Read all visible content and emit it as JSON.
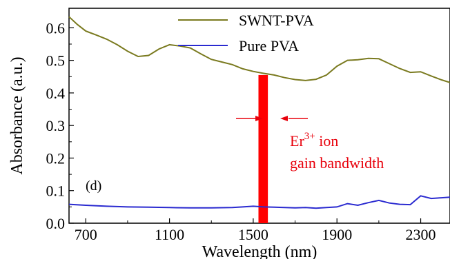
{
  "chart_data": {
    "type": "line",
    "xlabel": "Wavelength (nm)",
    "ylabel": "Absorbance (a.u.)",
    "xlim": [
      620,
      2440
    ],
    "ylim": [
      0.0,
      0.66
    ],
    "x_ticks": [
      700,
      1100,
      1500,
      1900,
      2300
    ],
    "y_ticks": [
      0.0,
      0.1,
      0.2,
      0.3,
      0.4,
      0.5,
      0.6
    ],
    "x_tick_labels": [
      "700",
      "1100",
      "1500",
      "1900",
      "2300"
    ],
    "y_tick_labels": [
      "0.0",
      "0.1",
      "0.2",
      "0.3",
      "0.4",
      "0.5",
      "0.6"
    ],
    "grid": false,
    "legend_position": "top-center",
    "series": [
      {
        "name": "SWNT-PVA",
        "color": "#7a7a1f",
        "x": [
          620,
          660,
          700,
          750,
          800,
          850,
          900,
          950,
          1000,
          1050,
          1100,
          1150,
          1200,
          1250,
          1300,
          1350,
          1400,
          1450,
          1500,
          1550,
          1600,
          1650,
          1700,
          1750,
          1800,
          1850,
          1900,
          1950,
          2000,
          2050,
          2100,
          2150,
          2200,
          2250,
          2300,
          2350,
          2400,
          2440
        ],
        "y": [
          0.634,
          0.61,
          0.59,
          0.578,
          0.565,
          0.548,
          0.528,
          0.512,
          0.515,
          0.535,
          0.548,
          0.544,
          0.538,
          0.52,
          0.503,
          0.495,
          0.487,
          0.474,
          0.466,
          0.46,
          0.455,
          0.447,
          0.441,
          0.438,
          0.442,
          0.455,
          0.482,
          0.5,
          0.502,
          0.506,
          0.505,
          0.49,
          0.475,
          0.463,
          0.465,
          0.452,
          0.44,
          0.432
        ]
      },
      {
        "name": "Pure PVA",
        "color": "#2a2ad0",
        "x": [
          620,
          700,
          800,
          900,
          1000,
          1100,
          1200,
          1300,
          1400,
          1450,
          1500,
          1550,
          1600,
          1650,
          1700,
          1750,
          1800,
          1850,
          1900,
          1950,
          2000,
          2050,
          2100,
          2150,
          2200,
          2250,
          2300,
          2350,
          2400,
          2440
        ],
        "y": [
          0.058,
          0.055,
          0.052,
          0.05,
          0.049,
          0.048,
          0.047,
          0.047,
          0.048,
          0.05,
          0.052,
          0.05,
          0.049,
          0.048,
          0.047,
          0.048,
          0.046,
          0.048,
          0.05,
          0.06,
          0.055,
          0.063,
          0.07,
          0.062,
          0.058,
          0.057,
          0.084,
          0.076,
          0.078,
          0.08
        ]
      }
    ],
    "band": {
      "x_start": 1525,
      "x_end": 1570,
      "color": "#ff0000"
    },
    "annotations": {
      "ion_prefix": "Er",
      "ion_superscript": "3+",
      "ion_suffix": " ion",
      "line2": "gain bandwidth",
      "panel_label": "(d)",
      "text_color": "#e8000b"
    }
  }
}
